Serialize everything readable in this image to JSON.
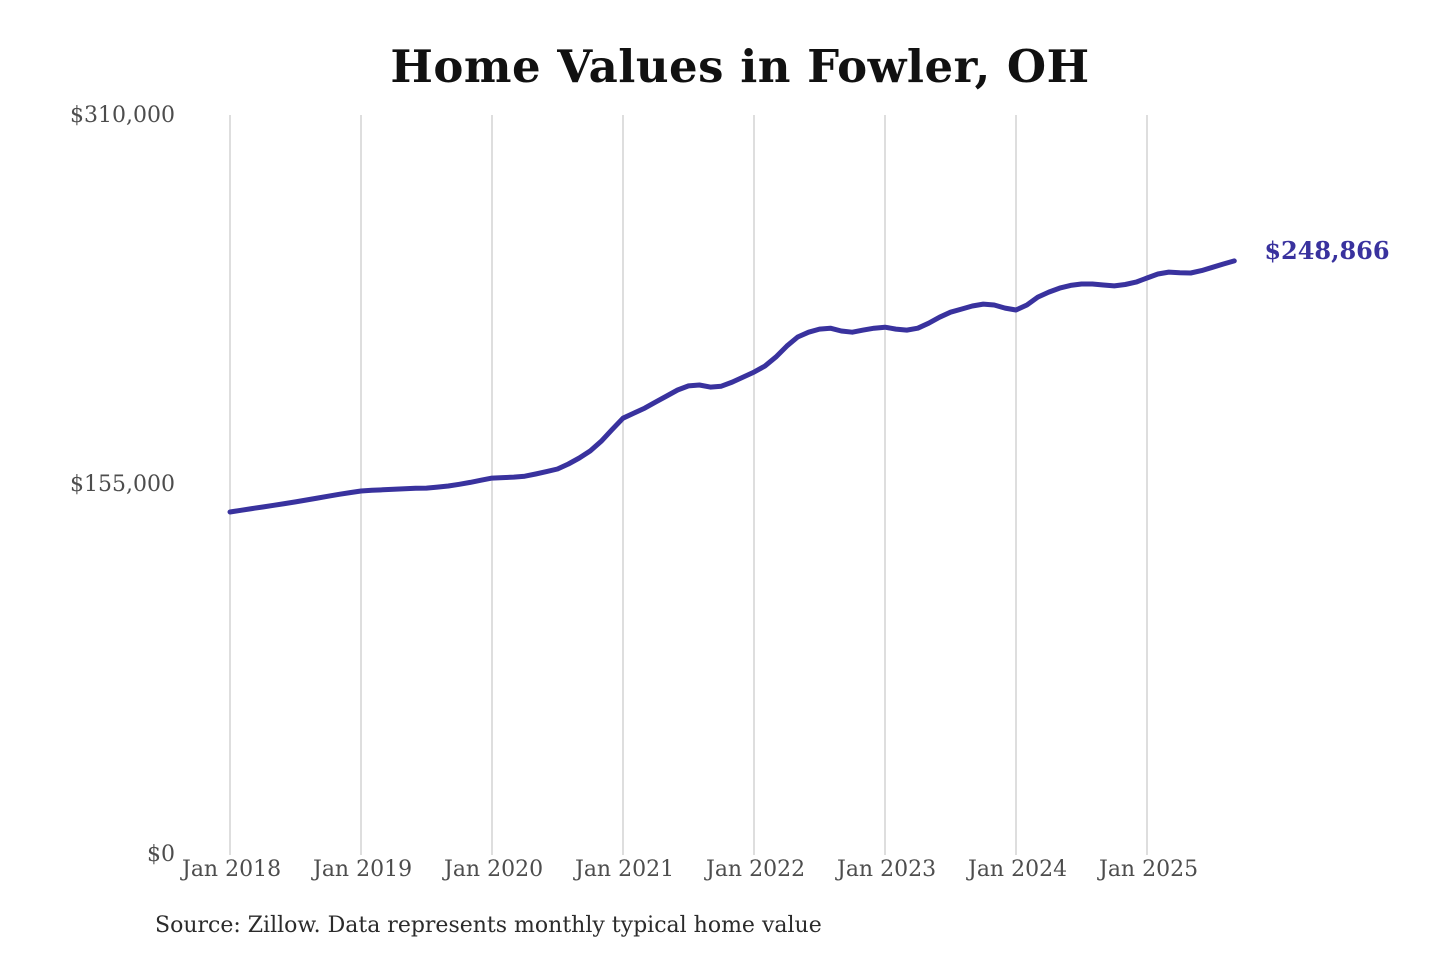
{
  "chart_data": {
    "type": "line",
    "title": "Home Values in Fowler, OH",
    "series_name": "Typical home value",
    "unit": "USD",
    "x_frequency": "monthly",
    "x_start": "2018-01",
    "x_end": "2025-09",
    "x_tick_labels": [
      "Jan 2018",
      "Jan 2019",
      "Jan 2020",
      "Jan 2021",
      "Jan 2022",
      "Jan 2023",
      "Jan 2024",
      "Jan 2025"
    ],
    "y_tick_labels": [
      "$310,000",
      "$155,000",
      "$0"
    ],
    "y_ticks": [
      310000,
      155000,
      0
    ],
    "ylim": [
      0,
      310000
    ],
    "grid": "vertical-only",
    "legend": "none",
    "line_color": "#39329e",
    "gridline_color": "#cccccc",
    "end_label": "$248,866",
    "final_value": 248866,
    "values": [
      143700,
      144400,
      145100,
      145800,
      146500,
      147200,
      147900,
      148700,
      149500,
      150300,
      151100,
      151800,
      152500,
      152800,
      153000,
      153200,
      153400,
      153600,
      153700,
      154100,
      154600,
      155300,
      156100,
      157000,
      157900,
      158100,
      158300,
      158700,
      159600,
      160600,
      161700,
      163800,
      166300,
      169300,
      173300,
      178200,
      183000,
      185100,
      187200,
      189800,
      192300,
      194800,
      196500,
      196900,
      196000,
      196400,
      198100,
      200200,
      202300,
      204800,
      208600,
      213200,
      217000,
      219000,
      220300,
      220700,
      219500,
      219000,
      219900,
      220700,
      221100,
      220300,
      219900,
      220700,
      222800,
      225300,
      227400,
      228700,
      230000,
      230800,
      230400,
      229100,
      228300,
      230400,
      233700,
      235800,
      237500,
      238600,
      239200,
      239200,
      238800,
      238400,
      239000,
      240000,
      241700,
      243400,
      244200,
      243900,
      243800,
      244800,
      246200,
      247600,
      248866
    ]
  },
  "footer": {
    "source": "Source: Zillow. Data represents monthly typical home value"
  }
}
